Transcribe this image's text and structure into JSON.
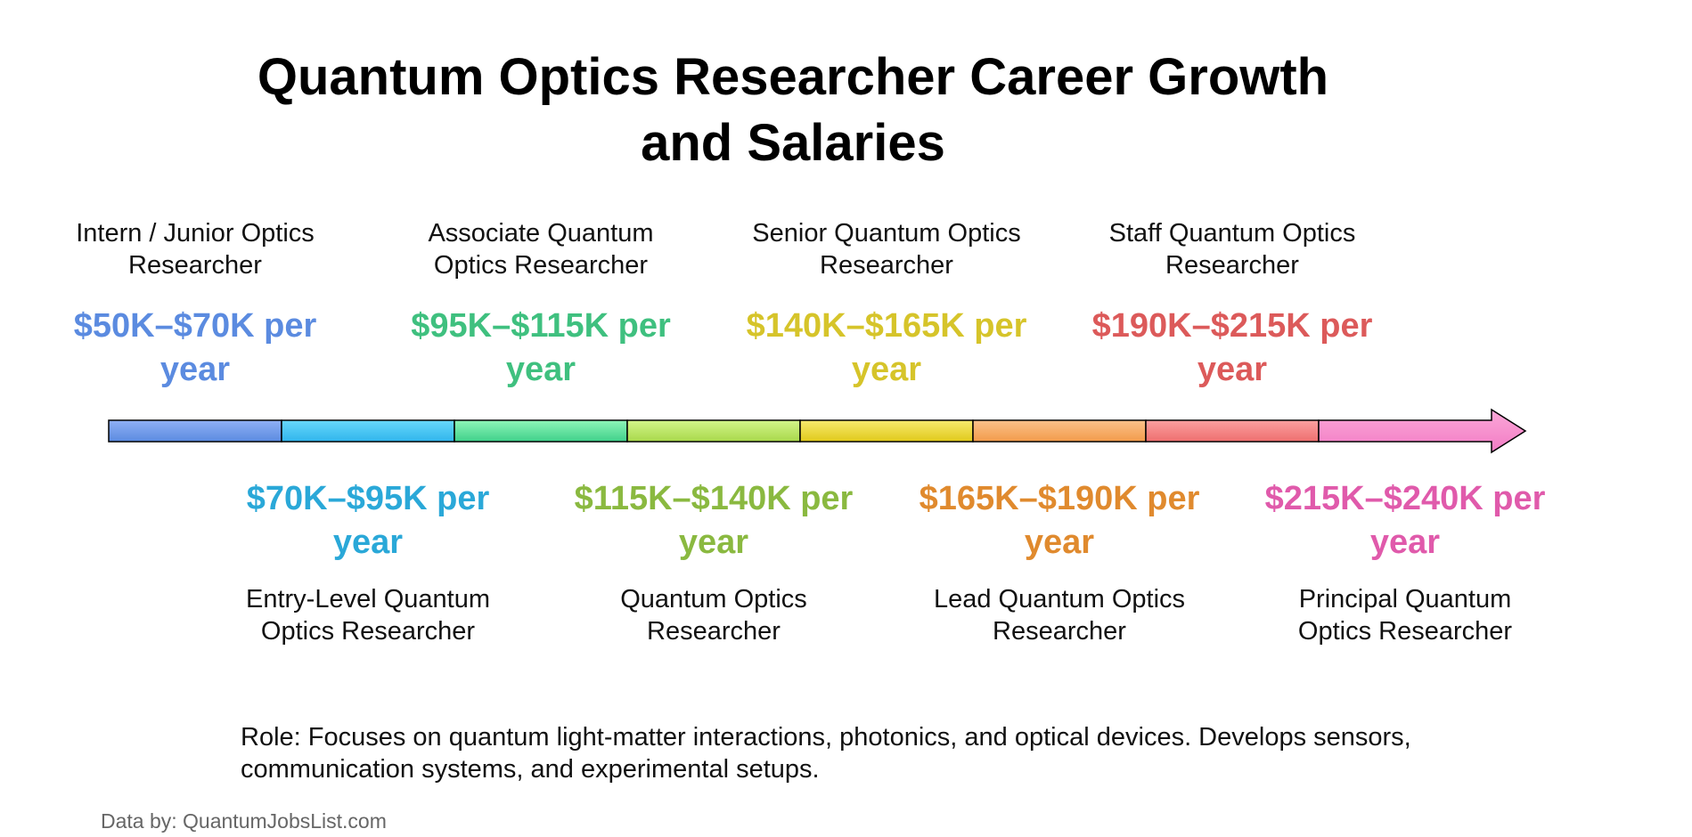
{
  "title": "Quantum Optics Researcher Career Growth and Salaries",
  "levels": [
    {
      "role": "Intern / Junior Optics Researcher",
      "salary": "$50K–$70K per year",
      "color": "#5b8be0",
      "bar_from": "#8fb0f5",
      "bar_to": "#5b8be0"
    },
    {
      "role": "Entry-Level Quantum Optics Researcher",
      "salary": "$70K–$95K per year",
      "color": "#2aa8d8",
      "bar_from": "#68d8fb",
      "bar_to": "#30b5ec"
    },
    {
      "role": "Associate Quantum Optics Researcher",
      "salary": "$95K–$115K per year",
      "color": "#3fc07f",
      "bar_from": "#8ef5b8",
      "bar_to": "#3fd08a"
    },
    {
      "role": "Quantum Optics Researcher",
      "salary": "$115K–$140K per year",
      "color": "#8ab940",
      "bar_from": "#d3f58a",
      "bar_to": "#a8d84a"
    },
    {
      "role": "Senior Quantum Optics Researcher",
      "salary": "$140K–$165K per year",
      "color": "#d6c42a",
      "bar_from": "#f7ea6e",
      "bar_to": "#e0c91a"
    },
    {
      "role": "Lead Quantum Optics Researcher",
      "salary": "$165K–$190K per year",
      "color": "#e08a2e",
      "bar_from": "#fbc18a",
      "bar_to": "#f29b4a"
    },
    {
      "role": "Staff Quantum Optics Researcher",
      "salary": "$190K–$215K per year",
      "color": "#dc5a5a",
      "bar_from": "#fba0a0",
      "bar_to": "#ee6f6f"
    },
    {
      "role": "Principal Quantum Optics Researcher",
      "salary": "$215K–$240K per year",
      "color": "#e05aab",
      "bar_from": "#fba8d8",
      "bar_to": "#f27bc4"
    }
  ],
  "description": "Role: Focuses on quantum light-matter interactions, photonics, and optical devices. Develops sensors, communication systems, and experimental setups.",
  "credit": "Data by: QuantumJobsList.com"
}
